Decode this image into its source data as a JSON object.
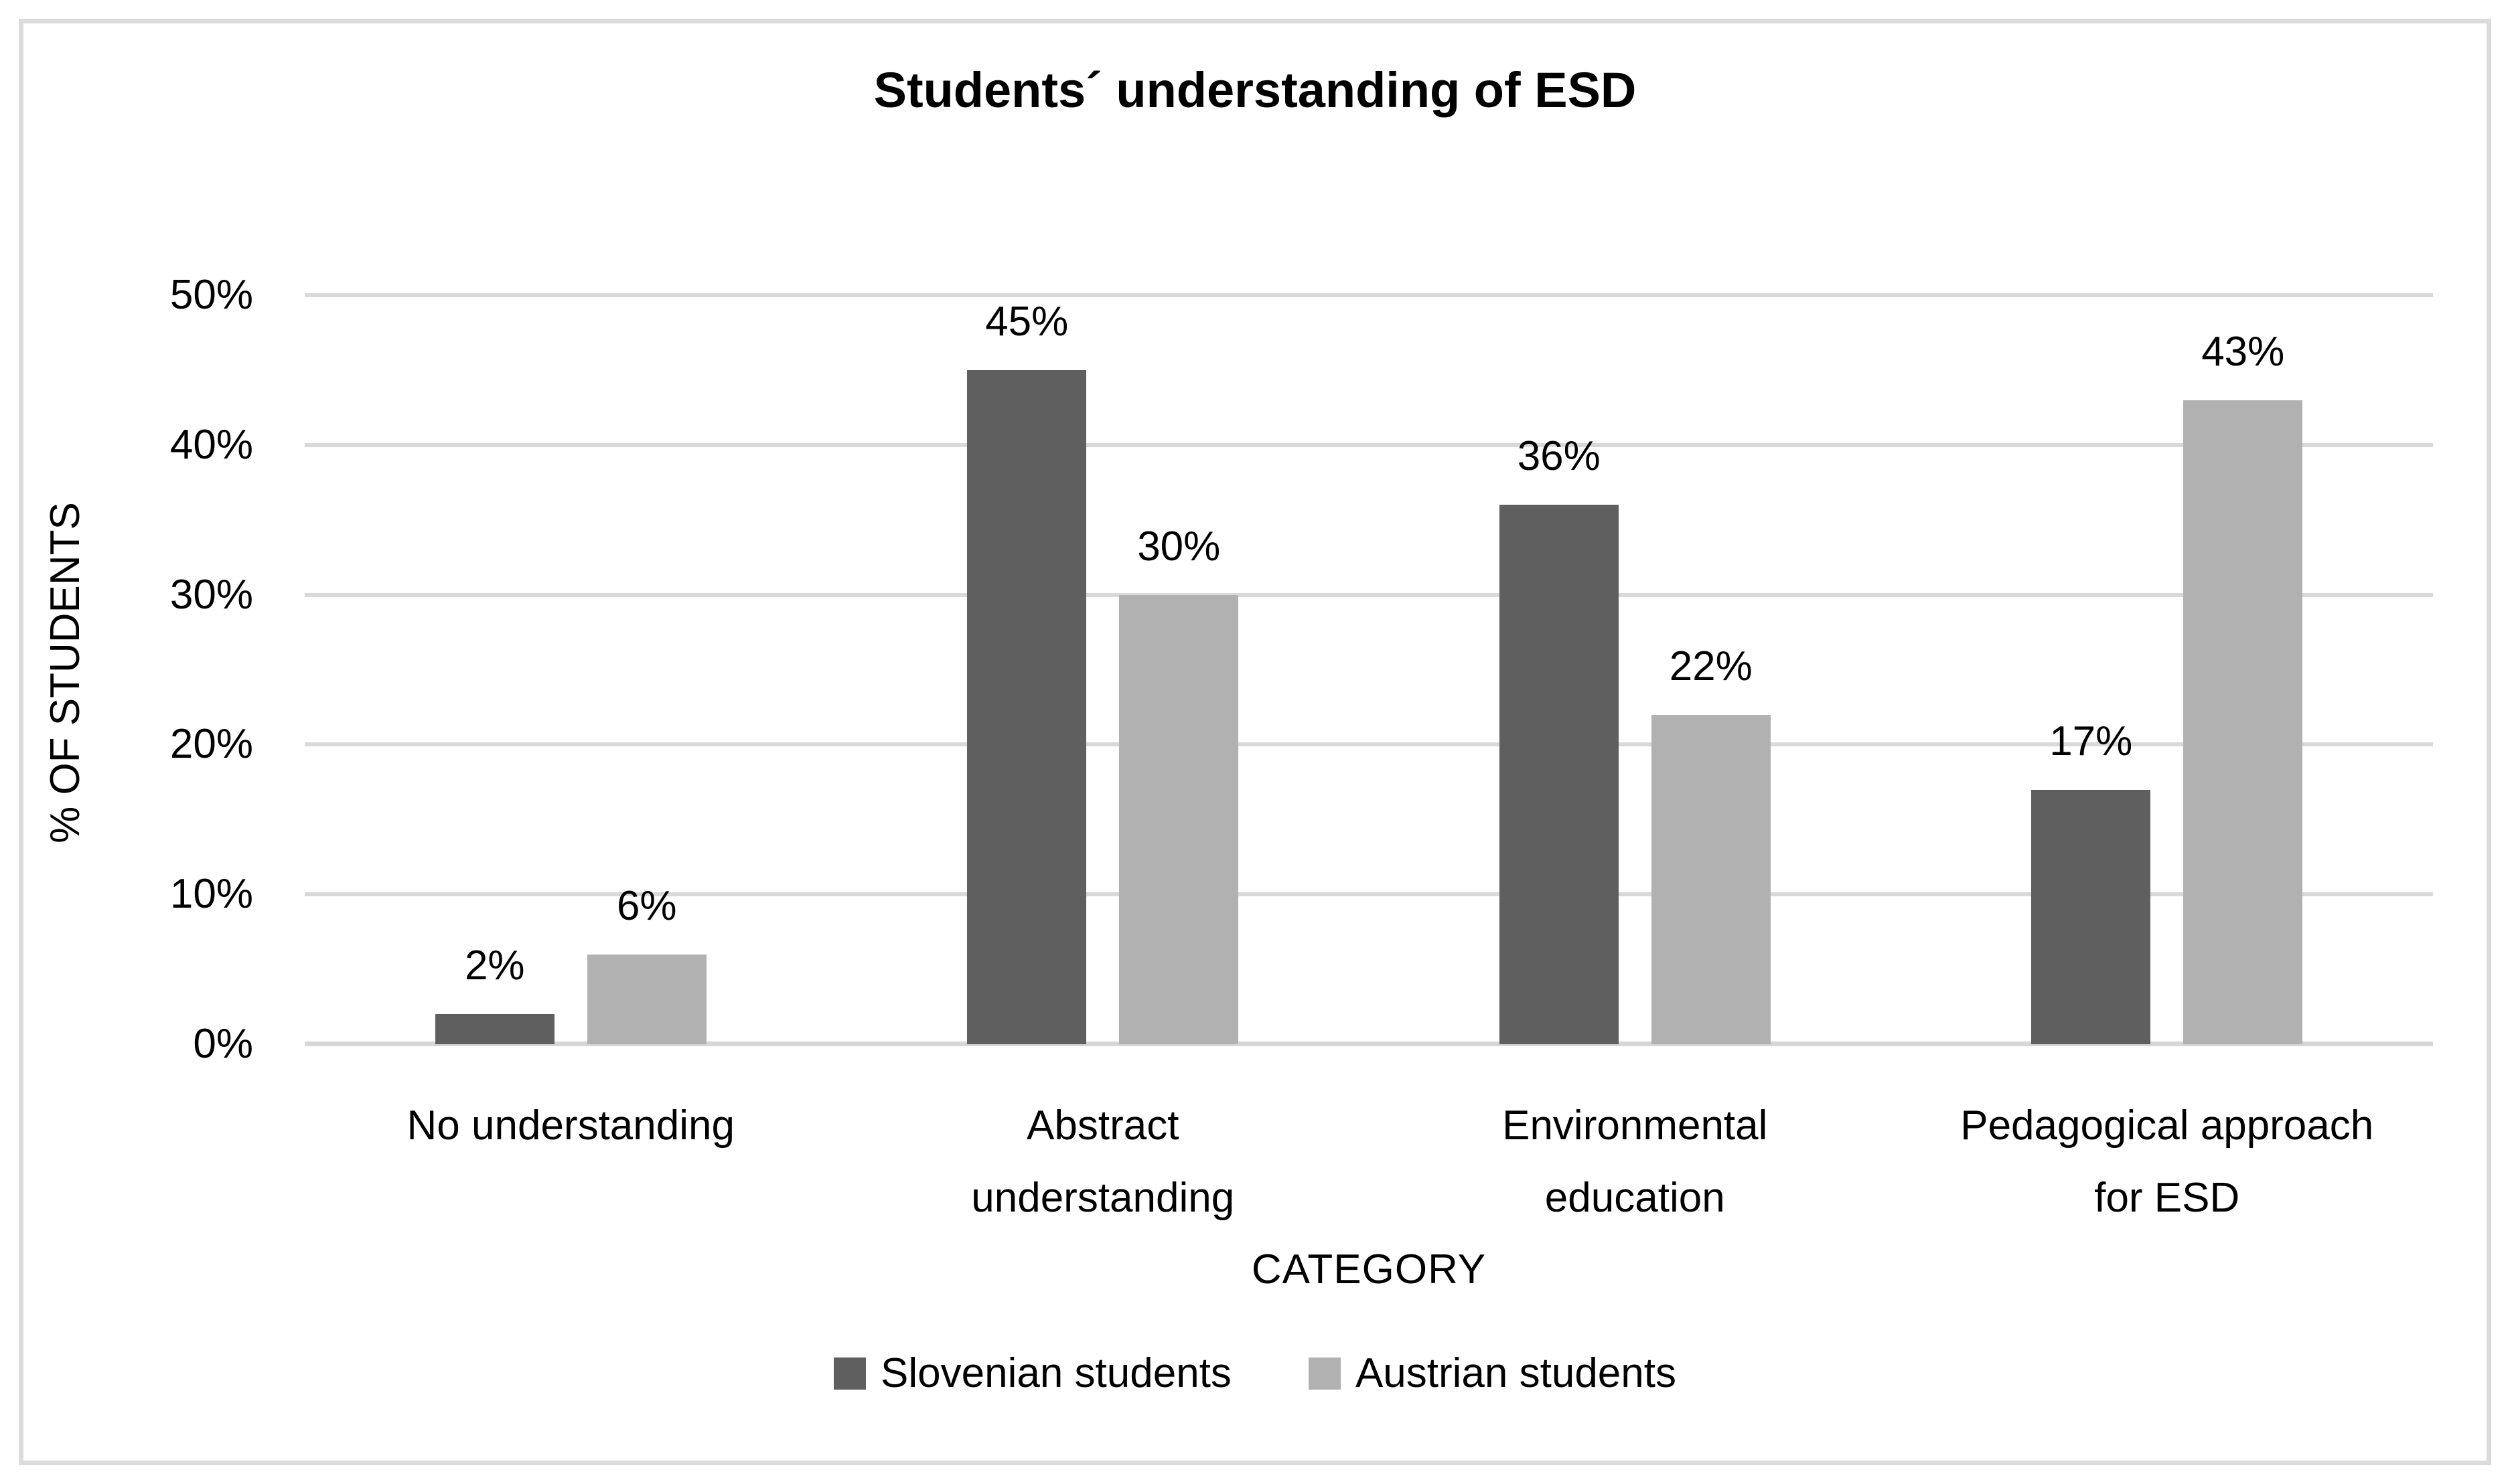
{
  "chart_data": {
    "type": "bar",
    "title": "Students´ understanding of ESD",
    "xlabel": "CATEGORY",
    "ylabel": "% OF STUDENTS",
    "ylim": [
      0,
      50
    ],
    "yticks": [
      0,
      10,
      20,
      30,
      40,
      50
    ],
    "ytick_labels": [
      "0%",
      "10%",
      "20%",
      "30%",
      "40%",
      "50%"
    ],
    "grid": true,
    "legend_position": "bottom",
    "categories": [
      "No understanding",
      "Abstract understanding",
      "Environmental education",
      "Pedagogical approach for ESD"
    ],
    "category_lines": [
      [
        "No understanding"
      ],
      [
        "Abstract",
        "understanding"
      ],
      [
        "Environmental",
        "education"
      ],
      [
        "Pedagogical approach",
        "for ESD"
      ]
    ],
    "series": [
      {
        "name": "Slovenian students",
        "color": "#5F5F5F",
        "values": [
          2,
          45,
          36,
          17
        ],
        "labels": [
          "2%",
          "45%",
          "36%",
          "17%"
        ]
      },
      {
        "name": "Austrian students",
        "color": "#B1B1B1",
        "values": [
          6,
          30,
          22,
          43
        ],
        "labels": [
          "6%",
          "30%",
          "22%",
          "43%"
        ]
      }
    ],
    "colors": {
      "gridline": "#D9D9D9",
      "axis_line": "#D6D6D6",
      "frame_border": "#DBDBDB",
      "text": "#000000",
      "background": "#FFFFFF"
    }
  }
}
